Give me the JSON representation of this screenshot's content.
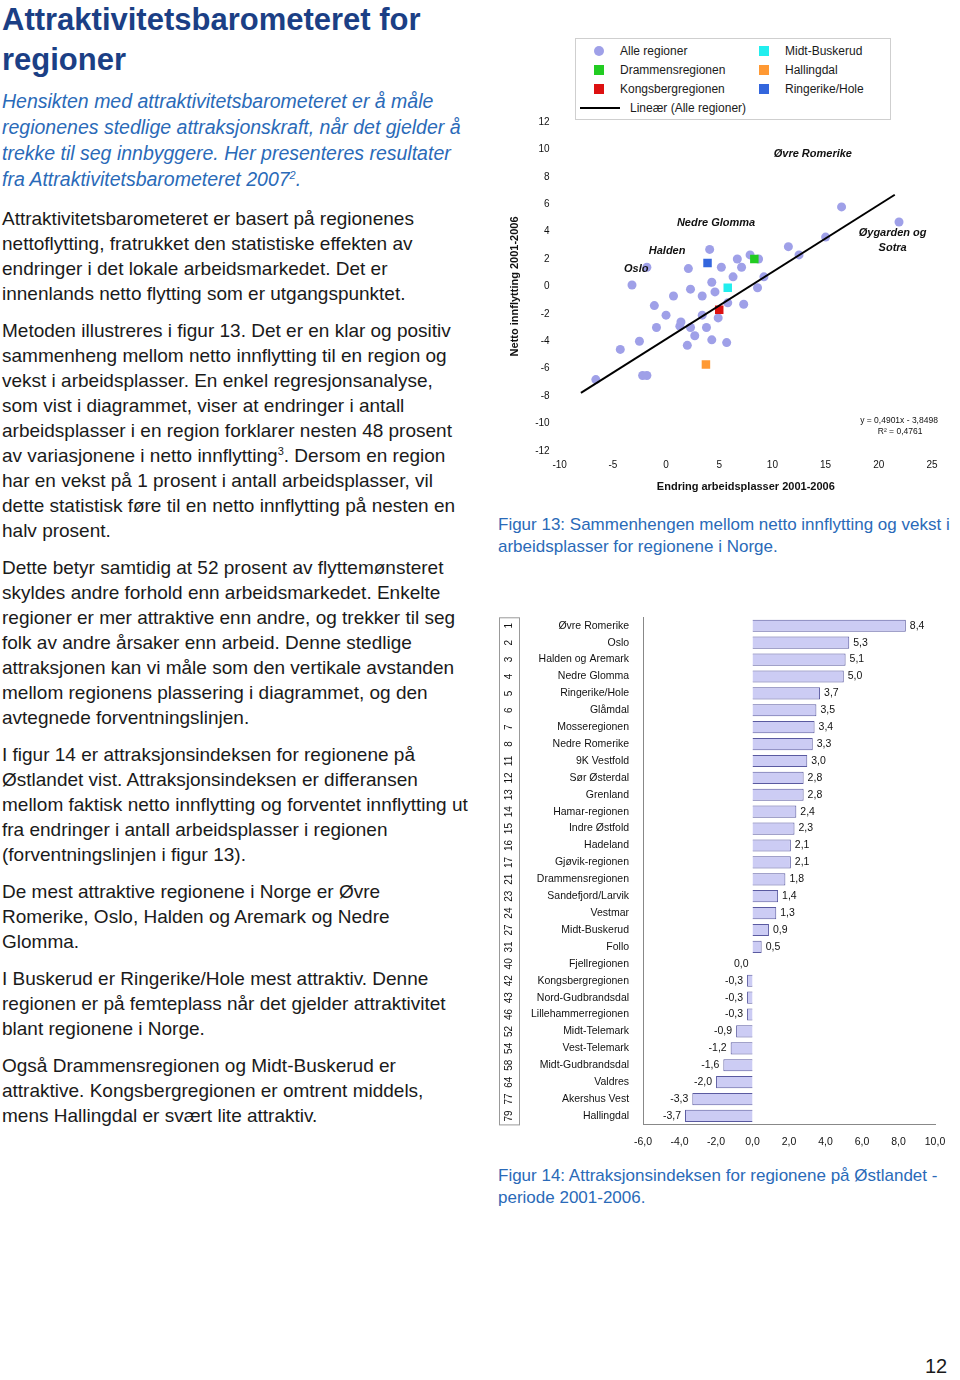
{
  "document": {
    "title": "Attraktivitetsbarometeret for regioner",
    "intro": [
      "Hensikten med attraktivitetsbarometeret er å måle regionenes stedlige attraksjonskraft, når det gjelder å trekke til seg innbyggere. Her presenteres resultater fra Attraktivitetsbarometeret 2007",
      {
        "sup": "2"
      },
      "."
    ],
    "paragraphs": [
      [
        "Attraktivitetsbarometeret er basert på regionenes nettoflytting, fratrukket den statistiske effekten av endringer i det lokale arbeidsmarkedet. Det er innenlands netto flytting som er utgangspunktet."
      ],
      [
        "Metoden illustreres i figur 13. Det er en klar og positiv sammenheng mellom netto innflytting til en region og vekst i arbeidsplasser. En enkel regresjonsanalyse, som vist i diagrammet, viser at endringer i antall arbeidsplasser i en region forklarer nesten 48 prosent av variasjonene i netto innflytting",
        {
          "sup": "3"
        },
        ". Dersom en region har en vekst på 1 prosent i antall arbeidsplasser, vil dette statistisk føre til en netto innflytting på nesten en halv prosent."
      ],
      [
        "Dette betyr samtidig at 52 prosent av flyttemønsteret skyldes andre forhold enn arbeidsmarkedet. Enkelte regioner er mer attraktive enn andre, og trekker til seg folk av andre årsaker enn arbeid. Denne stedlige attraksjonen kan vi måle som den vertikale avstanden mellom regionens plassering i diagrammet, og den avtegnede forventningslinjen."
      ],
      [
        "I figur 14 er attraksjonsindeksen for regionene på Østlandet vist. Attraksjonsindeksen er differansen mellom faktisk netto innflytting og forventet innflytting ut fra endringer i antall arbeidsplasser i regionen (forventningslinjen i figur 13)."
      ],
      [
        "De mest attraktive regionene i Norge er Øvre Romerike, Oslo, Halden og Aremark og Nedre Glomma."
      ],
      [
        "I Buskerud er Ringerike/Hole mest attraktiv. Denne regionen er på femteplass når det gjelder attraktivitet blant regionene i Norge."
      ],
      [
        "Også Drammensregionen og Midt-Buskerud er attraktive. Kongsbergregionen er omtrent middels, mens Hallingdal er svært lite attraktiv."
      ]
    ],
    "page_number": "12"
  },
  "chart_data": [
    {
      "type": "scatter",
      "caption": "Figur 13: Sammenhengen mellom netto innflytting og vekst i arbeidsplasser for regionene i Norge.",
      "x_label": "Endring arbeidsplasser 2001-2006",
      "y_label": "Netto innflytting 2001-2006",
      "xlim": [
        -10,
        25
      ],
      "xticks": [
        -10,
        -5,
        0,
        5,
        10,
        15,
        20,
        25
      ],
      "ylim": [
        -12,
        12
      ],
      "yticks": [
        -12,
        -10,
        -8,
        -6,
        -4,
        -2,
        0,
        2,
        4,
        6,
        8,
        10,
        12
      ],
      "grid": false,
      "legend": "top",
      "series": [
        {
          "name": "Alle regioner",
          "color": "#9fa0e8",
          "marker": "circle",
          "x": [
            -6.6,
            -2.2,
            -1.8,
            -4.3,
            -2.5,
            -0.9,
            -1.1,
            0.7,
            1.3,
            2.0,
            2.7,
            2.3,
            3.8,
            4.3,
            5.7,
            2.3,
            3.4,
            4.3,
            4.6,
            6.3,
            7.1,
            7.9,
            8.7,
            6.7,
            5.8,
            4.9,
            3.4,
            1.4,
            7.3,
            8.6,
            9.2,
            11.5,
            12.5,
            15.0,
            16.5,
            21.9,
            2.1,
            4.1,
            -1.8,
            -3.2,
            0.0,
            5.2
          ],
          "values": [
            -6.8,
            -6.5,
            -6.5,
            -4.6,
            -4.0,
            -3.0,
            -1.4,
            -0.7,
            -2.9,
            -4.3,
            -3.6,
            -3.0,
            -3.0,
            -3.9,
            -4.1,
            -0.2,
            -0.7,
            0.3,
            -0.4,
            0.7,
            1.4,
            2.3,
            2.0,
            2.0,
            -1.2,
            -2.3,
            -2.1,
            -2.6,
            -1.3,
            -0.1,
            0.7,
            2.9,
            2.3,
            3.6,
            5.8,
            4.7,
            1.3,
            2.7,
            1.4,
            0.1,
            -2.1,
            1.4
          ]
        },
        {
          "name": "Drammensregionen",
          "color": "#22cc22",
          "marker": "square",
          "x": [
            8.3
          ],
          "values": [
            2.0
          ]
        },
        {
          "name": "Kongsbergregionen",
          "color": "#dd1111",
          "marker": "square",
          "x": [
            5.0
          ],
          "values": [
            -1.7
          ]
        },
        {
          "name": "Lineær (Alle regioner)",
          "color": "#000000",
          "type": "line",
          "marker": "none",
          "x": [
            -8.0,
            21.5
          ],
          "values": [
            -7.77,
            6.69
          ]
        },
        {
          "name": "Midt-Buskerud",
          "color": "#22eeee",
          "marker": "square",
          "x": [
            5.8
          ],
          "values": [
            -0.1
          ]
        },
        {
          "name": "Hallingdal",
          "color": "#ff9933",
          "marker": "square",
          "x": [
            3.75
          ],
          "values": [
            -5.7
          ]
        },
        {
          "name": "Ringerike/Hole",
          "color": "#3366dd",
          "marker": "square",
          "x": [
            3.9
          ],
          "values": [
            1.7
          ]
        }
      ],
      "annotations": [
        {
          "text": "Øvre Romerike",
          "x": 13.8,
          "y": 9.7
        },
        {
          "text": "Nedre Glomma",
          "x": 4.7,
          "y": 4.6
        },
        {
          "text": "Halden",
          "x": 0.1,
          "y": 2.6
        },
        {
          "text": "Oslo",
          "x": -2.8,
          "y": 1.3
        },
        {
          "text": "Øygarden og",
          "x": 21.3,
          "y": 3.9
        },
        {
          "text": "Sotra",
          "x": 21.3,
          "y": 2.8
        }
      ],
      "fit_labels": [
        {
          "text": "y = 0,4901x - 3,8498",
          "x": 21.9,
          "y": -9.8
        },
        {
          "text": "R² = 0,4761",
          "x": 22.0,
          "y": -10.6
        }
      ]
    },
    {
      "type": "bar",
      "orientation": "horizontal",
      "caption": "Figur 14: Attraksjonsindeksen for regionene på Østlandet - periode 2001-2006.",
      "categories": [
        "Øvre Romerike",
        "Oslo",
        "Halden og Aremark",
        "Nedre Glomma",
        "Ringerike/Hole",
        "Glåmdal",
        "Mosseregionen",
        "Nedre Romerike",
        "9K Vestfold",
        "Sør Østerdal",
        "Grenland",
        "Hamar-regionen",
        "Indre Østfold",
        "Hadeland",
        "Gjøvik-regionen",
        "Drammensregionen",
        "Sandefjord/Larvik",
        "Vestmar",
        "Midt-Buskerud",
        "Follo",
        "Fjellregionen",
        "Kongsbergregionen",
        "Nord-Gudbrandsdal",
        "Lillehammerregionen",
        "Midt-Telemark",
        "Vest-Telemark",
        "Midt-Gudbrandsdal",
        "Valdres",
        "Akershus Vest",
        "Hallingdal"
      ],
      "ranks": [
        1,
        2,
        3,
        4,
        5,
        6,
        7,
        8,
        11,
        12,
        13,
        14,
        15,
        16,
        17,
        21,
        23,
        24,
        27,
        31,
        40,
        42,
        43,
        46,
        52,
        54,
        58,
        64,
        77,
        79
      ],
      "values": [
        8.4,
        5.3,
        5.1,
        5.0,
        3.7,
        3.5,
        3.4,
        3.3,
        3.0,
        2.8,
        2.8,
        2.4,
        2.3,
        2.1,
        2.1,
        1.8,
        1.4,
        1.3,
        0.9,
        0.5,
        0.0,
        -0.3,
        -0.3,
        -0.3,
        -0.9,
        -1.2,
        -1.6,
        -2.0,
        -3.3,
        -3.7
      ],
      "value_labels": [
        "8,4",
        "5,3",
        "5,1",
        "5,0",
        "3,7",
        "3,5",
        "3,4",
        "3,3",
        "3,0",
        "2,8",
        "2,8",
        "2,4",
        "2,3",
        "2,1",
        "2,1",
        "1,8",
        "1,4",
        "1,3",
        "0,9",
        "0,5",
        "0,0",
        "-0,3",
        "-0,3",
        "-0,3",
        "-0,9",
        "-1,2",
        "-1,6",
        "-2,0",
        "-3,3",
        "-3,7"
      ],
      "data_labels": true,
      "color": "#ccccf4",
      "grid": false,
      "xlim": [
        -6,
        10
      ],
      "xticks": [
        {
          "value": -6,
          "label": "-6,0"
        },
        {
          "value": -4,
          "label": "-4,0"
        },
        {
          "value": -2,
          "label": "-2,0"
        },
        {
          "value": 0,
          "label": "0,0"
        },
        {
          "value": 2,
          "label": "2,0"
        },
        {
          "value": 4,
          "label": "4,0"
        },
        {
          "value": 6,
          "label": "6,0"
        },
        {
          "value": 8,
          "label": "8,0"
        },
        {
          "value": 10,
          "label": "10,0"
        }
      ]
    }
  ]
}
